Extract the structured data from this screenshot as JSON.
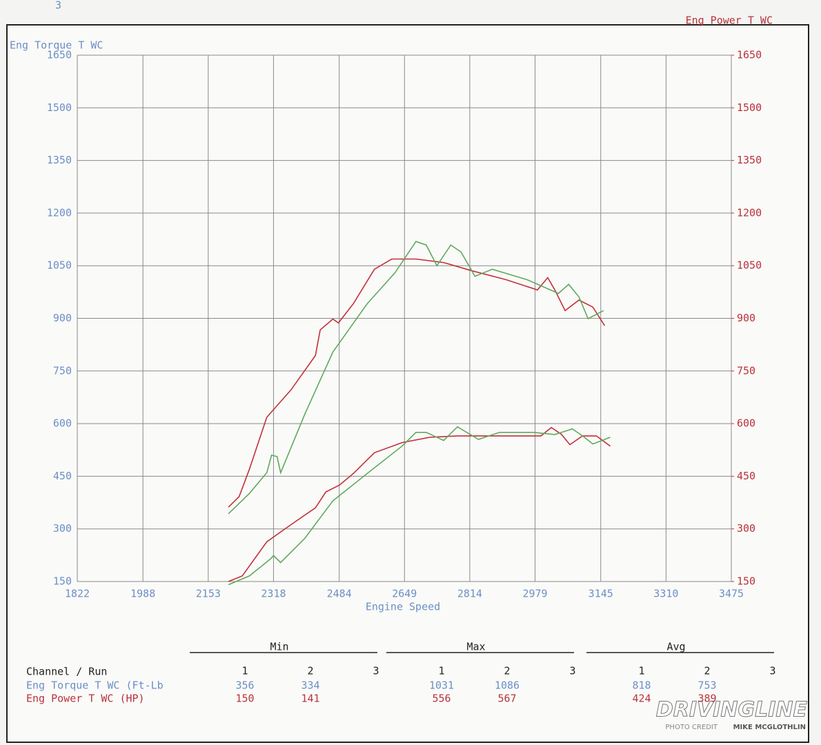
{
  "page_number": "3",
  "chart_data": {
    "type": "line",
    "xlabel": "Engine Speed",
    "ylabel": "Eng Torque T WC",
    "y2label": "Eng Power T WC",
    "xlim": [
      1822,
      3475
    ],
    "xticks": [
      1822,
      1988,
      2153,
      2318,
      2484,
      2649,
      2814,
      2979,
      3145,
      3310,
      3475
    ],
    "ylim": [
      150,
      1650
    ],
    "yticks": [
      150,
      300,
      450,
      600,
      750,
      900,
      1050,
      1200,
      1350,
      1500,
      1650
    ],
    "y2lim": [
      150,
      1650
    ],
    "y2ticks": [
      150,
      300,
      450,
      600,
      750,
      900,
      1050,
      1200,
      1350,
      1500,
      1650
    ],
    "grid": true,
    "series": [
      {
        "color": "#c0303a",
        "x": [
          2204,
          2231,
          2257,
          2301,
          2362,
          2424,
          2436,
          2468,
          2482,
          2520,
          2573,
          2617,
          2678,
          2748,
          2818,
          2906,
          2985,
          3011,
          3029,
          3055,
          3090,
          3125,
          3155
        ],
        "values": [
          362,
          392,
          470,
          618,
          696,
          794,
          867,
          898,
          887,
          942,
          1040,
          1069,
          1069,
          1059,
          1036,
          1010,
          981,
          1016,
          981,
          922,
          952,
          932,
          879
        ]
      },
      {
        "color": "#5fa85f",
        "x": [
          2204,
          2257,
          2301,
          2313,
          2327,
          2336,
          2397,
          2468,
          2555,
          2625,
          2678,
          2704,
          2731,
          2766,
          2792,
          2827,
          2871,
          2959,
          3038,
          3064,
          3090,
          3113,
          3152
        ],
        "values": [
          343,
          401,
          460,
          510,
          506,
          460,
          627,
          804,
          942,
          1030,
          1119,
          1109,
          1050,
          1109,
          1089,
          1020,
          1040,
          1010,
          971,
          997,
          961,
          899,
          922
        ]
      },
      {
        "color": "#c0303a",
        "axis": "y2",
        "x": [
          2204,
          2239,
          2301,
          2362,
          2424,
          2450,
          2485,
          2520,
          2573,
          2643,
          2713,
          2783,
          2889,
          2994,
          3020,
          3046,
          3067,
          3099,
          3134,
          3169
        ],
        "values": [
          150,
          166,
          263,
          312,
          360,
          405,
          425,
          458,
          517,
          546,
          561,
          565,
          565,
          565,
          589,
          569,
          540,
          565,
          565,
          536
        ]
      },
      {
        "color": "#5fa85f",
        "axis": "y2",
        "x": [
          2204,
          2257,
          2310,
          2318,
          2336,
          2397,
          2468,
          2555,
          2643,
          2678,
          2704,
          2748,
          2783,
          2836,
          2889,
          2976,
          3029,
          3073,
          3099,
          3125,
          3169
        ],
        "values": [
          141,
          166,
          214,
          224,
          204,
          273,
          380,
          458,
          536,
          575,
          575,
          552,
          591,
          555,
          575,
          575,
          569,
          585,
          565,
          542,
          561
        ]
      }
    ]
  },
  "table": {
    "groups": [
      "Min",
      "Max",
      "Avg"
    ],
    "channel_header": "Channel / Run",
    "runs": [
      "1",
      "2",
      "3"
    ],
    "rows": [
      {
        "label": "Eng Torque T WC (Ft-Lb",
        "cells": [
          [
            "356",
            "334"
          ],
          [
            "1031",
            "1086"
          ],
          [
            "818",
            "753"
          ]
        ]
      },
      {
        "label": "Eng Power T WC (HP)",
        "cells": [
          [
            "150",
            "141"
          ],
          [
            "556",
            "567"
          ],
          [
            "424",
            "389"
          ]
        ]
      }
    ]
  },
  "watermark": {
    "brand": "DRIVINGLINE",
    "credit": "PHOTO CREDIT",
    "photographer": "MIKE MCGLOTHLIN"
  }
}
